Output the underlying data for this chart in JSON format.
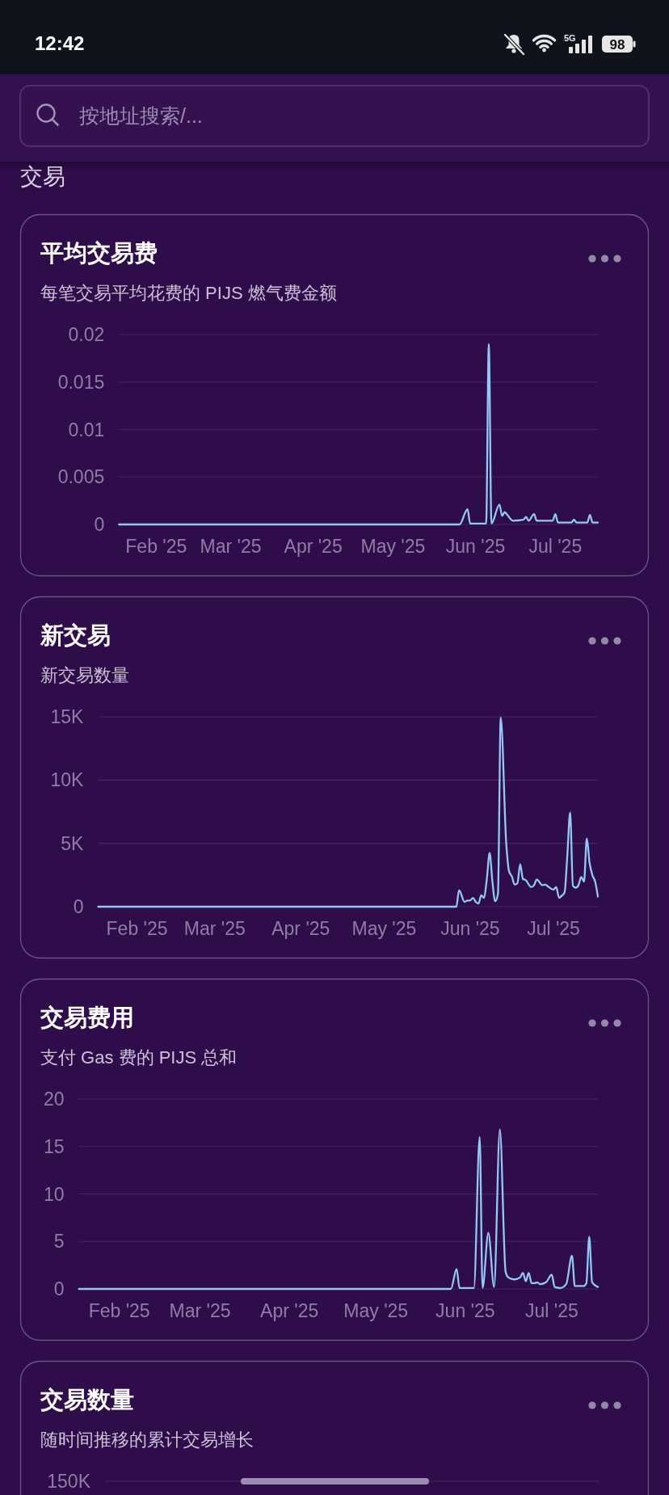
{
  "chart_data": [
    {
      "type": "other",
      "title": "交易",
      "annotations": [
        "12:42",
        "5G",
        "98",
        "按地址搜索/..."
      ]
    },
    {
      "type": "line",
      "title": "平均交易费",
      "subtitle": "每笔交易平均花费的 PIJS 燃气费金额",
      "x": [
        "2025-01-18",
        "2025-05-26",
        "2025-05-29",
        "2025-05-30",
        "2025-06-05",
        "2025-06-06",
        "2025-06-07",
        "2025-06-10",
        "2025-06-11",
        "2025-06-12",
        "2025-06-13",
        "2025-06-15",
        "2025-06-19",
        "2025-06-20",
        "2025-06-21",
        "2025-06-23",
        "2025-06-24",
        "2025-06-30",
        "2025-07-01",
        "2025-07-02",
        "2025-07-07",
        "2025-07-08",
        "2025-07-09",
        "2025-07-13",
        "2025-07-14",
        "2025-07-15",
        "2025-07-17"
      ],
      "series": [
        {
          "color": "#93c8f4",
          "values": [
            0,
            0,
            0.0016,
            0.0001,
            0.0001,
            0.019,
            0.0001,
            0.0021,
            0.0009,
            0.0013,
            0.001,
            0.0004,
            0.0005,
            0.0008,
            0.0004,
            0.0011,
            0.0004,
            0.0004,
            0.0011,
            0.0002,
            0.0002,
            0.0005,
            0.0002,
            0.0002,
            0.001,
            0.0002,
            0.0002
          ]
        }
      ],
      "xlim": [
        "2025-01-18",
        "2025-07-17"
      ],
      "xticks": [
        {
          "value": "2025-02-01",
          "label": "Feb '25"
        },
        {
          "value": "2025-03-01",
          "label": "Mar '25"
        },
        {
          "value": "2025-04-01",
          "label": "Apr '25"
        },
        {
          "value": "2025-05-01",
          "label": "May '25"
        },
        {
          "value": "2025-06-01",
          "label": "Jun '25"
        },
        {
          "value": "2025-07-01",
          "label": "Jul '25"
        }
      ],
      "ylim": [
        0,
        0.02
      ],
      "yticks": [
        0,
        0.005,
        0.01,
        0.015,
        0.02
      ],
      "grid": "y"
    },
    {
      "type": "line",
      "title": "新交易",
      "subtitle": "新交易数量",
      "x": [
        "2025-01-18",
        "2025-05-27",
        "2025-05-28",
        "2025-05-30",
        "2025-05-31",
        "2025-06-01",
        "2025-06-02",
        "2025-06-03",
        "2025-06-04",
        "2025-06-05",
        "2025-06-06",
        "2025-06-07",
        "2025-06-08",
        "2025-06-09",
        "2025-06-10",
        "2025-06-11",
        "2025-06-12",
        "2025-06-14",
        "2025-06-15",
        "2025-06-16",
        "2025-06-17",
        "2025-06-18",
        "2025-06-19",
        "2025-06-20",
        "2025-06-21",
        "2025-06-23",
        "2025-06-24",
        "2025-06-25",
        "2025-06-27",
        "2025-06-28",
        "2025-06-29",
        "2025-07-01",
        "2025-07-02",
        "2025-07-03",
        "2025-07-04",
        "2025-07-05",
        "2025-07-06",
        "2025-07-07",
        "2025-07-08",
        "2025-07-09",
        "2025-07-10",
        "2025-07-11",
        "2025-07-12",
        "2025-07-13",
        "2025-07-14",
        "2025-07-15",
        "2025-07-16",
        "2025-07-17"
      ],
      "series": [
        {
          "color": "#93c8f4",
          "values": [
            0,
            0,
            1300,
            380,
            490,
            490,
            700,
            380,
            250,
            900,
            700,
            2200,
            4250,
            2000,
            430,
            1000,
            14950,
            4950,
            2800,
            2400,
            1750,
            1850,
            3350,
            2200,
            2100,
            1550,
            1700,
            2150,
            1700,
            1750,
            1600,
            1350,
            1550,
            700,
            870,
            1130,
            4100,
            7440,
            1660,
            1500,
            1700,
            2350,
            1980,
            5380,
            3460,
            2500,
            2000,
            800
          ]
        }
      ],
      "xlim": [
        "2025-01-18",
        "2025-07-17"
      ],
      "xticks": [
        {
          "value": "2025-02-01",
          "label": "Feb '25"
        },
        {
          "value": "2025-03-01",
          "label": "Mar '25"
        },
        {
          "value": "2025-04-01",
          "label": "Apr '25"
        },
        {
          "value": "2025-05-01",
          "label": "May '25"
        },
        {
          "value": "2025-06-01",
          "label": "Jun '25"
        },
        {
          "value": "2025-07-01",
          "label": "Jul '25"
        }
      ],
      "ylim": [
        0,
        15000
      ],
      "yticks": [
        0,
        {
          "value": 5000,
          "label": "5K"
        },
        {
          "value": 10000,
          "label": "10K"
        },
        {
          "value": 15000,
          "label": "15K"
        }
      ],
      "grid": "y"
    },
    {
      "type": "line",
      "title": "交易费用",
      "subtitle": "支付 Gas 费的 PIJS 总和",
      "x": [
        "2025-01-18",
        "2025-05-27",
        "2025-05-29",
        "2025-05-30",
        "2025-06-04",
        "2025-06-06",
        "2025-06-07",
        "2025-06-09",
        "2025-06-11",
        "2025-06-13",
        "2025-06-15",
        "2025-06-16",
        "2025-06-18",
        "2025-06-20",
        "2025-06-21",
        "2025-06-22",
        "2025-06-23",
        "2025-06-24",
        "2025-06-25",
        "2025-06-26",
        "2025-06-27",
        "2025-06-29",
        "2025-07-01",
        "2025-07-02",
        "2025-07-04",
        "2025-07-06",
        "2025-07-08",
        "2025-07-09",
        "2025-07-12",
        "2025-07-13",
        "2025-07-14",
        "2025-07-15",
        "2025-07-17"
      ],
      "series": [
        {
          "color": "#93c8f4",
          "values": [
            0,
            0,
            2.1,
            0.1,
            0.1,
            16,
            0.1,
            5.9,
            0.2,
            16.8,
            1.8,
            1.2,
            1,
            1.2,
            1.7,
            0.8,
            1.7,
            0.6,
            0.6,
            0.7,
            0.5,
            0.7,
            1.5,
            0.2,
            0.1,
            0.5,
            3.5,
            0.3,
            0.3,
            0.6,
            5.5,
            0.7,
            0.2
          ]
        }
      ],
      "xlim": [
        "2025-01-18",
        "2025-07-17"
      ],
      "xticks": [
        {
          "value": "2025-02-01",
          "label": "Feb '25"
        },
        {
          "value": "2025-03-01",
          "label": "Mar '25"
        },
        {
          "value": "2025-04-01",
          "label": "Apr '25"
        },
        {
          "value": "2025-05-01",
          "label": "May '25"
        },
        {
          "value": "2025-06-01",
          "label": "Jun '25"
        },
        {
          "value": "2025-07-01",
          "label": "Jul '25"
        }
      ],
      "ylim": [
        0,
        20
      ],
      "yticks": [
        0,
        5,
        10,
        15,
        20
      ],
      "grid": "y"
    },
    {
      "type": "other",
      "title": "交易数量",
      "subtitle": "随时间推移的累计交易增长",
      "annotations": [
        "150K"
      ]
    }
  ]
}
